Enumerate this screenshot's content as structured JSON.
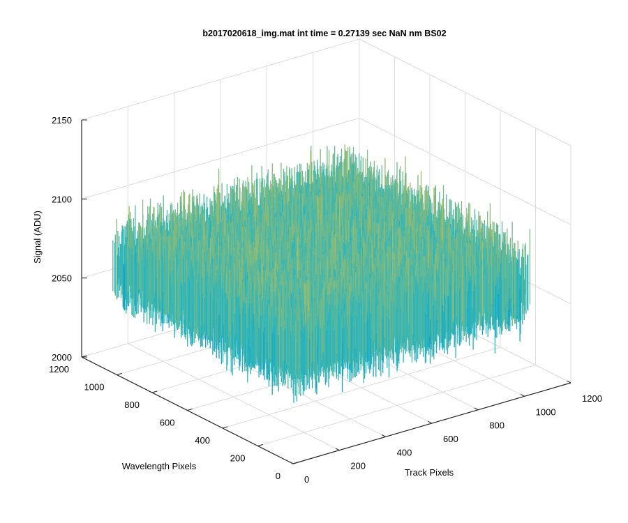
{
  "chart_data": {
    "type": "surface3d",
    "title": "b2017020618_img.mat int time = 0.27139 sec  NaN nm BS02",
    "xlabel": "Track Pixels",
    "ylabel": "Wavelength Pixels",
    "zlabel": "Signal (ADU)",
    "xlim": [
      0,
      1200
    ],
    "ylim": [
      0,
      1200
    ],
    "zlim": [
      2000,
      2150
    ],
    "x_ticks": [
      "0",
      "200",
      "400",
      "600",
      "800",
      "1000",
      "1200"
    ],
    "y_ticks": [
      "0",
      "200",
      "400",
      "600",
      "800",
      "1000",
      "1200"
    ],
    "z_ticks": [
      "2000",
      "2050",
      "2100",
      "2150"
    ],
    "x_extent": [
      1,
      1024
    ],
    "y_extent": [
      1,
      1024
    ],
    "z_mean": 2070,
    "z_range": [
      2028,
      2140
    ],
    "grid": true,
    "colormap": "parula",
    "colors": {
      "low": "#0072bd",
      "mid": "#21b5c4",
      "high": "#f0c030",
      "axis": "#262626",
      "grid": "#dcdcdc"
    }
  }
}
